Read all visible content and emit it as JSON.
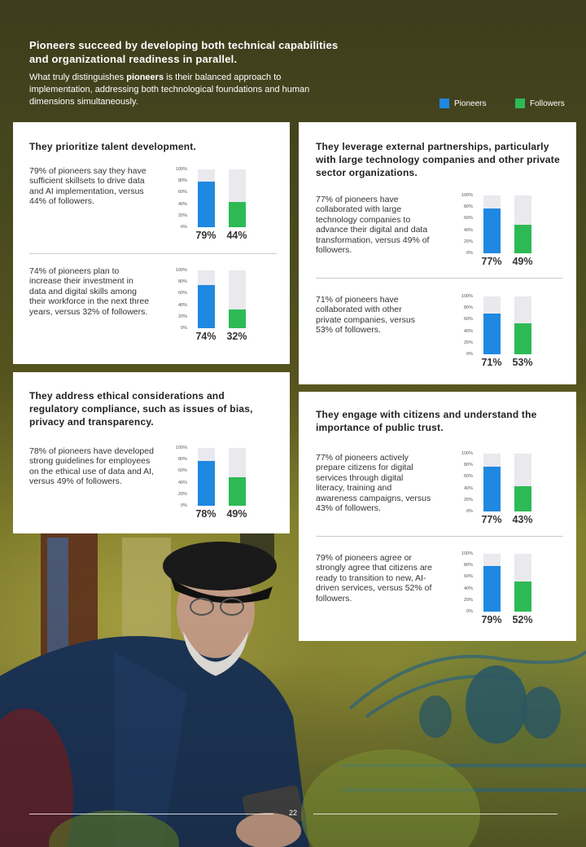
{
  "header": {
    "title": "Pioneers succeed by developing both technical capabilities and organizational readiness in parallel.",
    "intro_before": "What truly distinguishes ",
    "intro_bold": "pioneers",
    "intro_after": " is their balanced approach to implementation, addressing both technological foundations and human dimensions simultaneously."
  },
  "legend": {
    "pioneers": "Pioneers",
    "followers": "Followers",
    "pioneers_color": "#1f88e0",
    "followers_color": "#2dba55"
  },
  "ticks": [
    "100%",
    "80%",
    "60%",
    "40%",
    "20%",
    "0%"
  ],
  "panels": {
    "talent": {
      "title": "They prioritize talent development.",
      "stats": [
        {
          "text": "79% of pioneers say they have sufficient skillsets to drive data and AI implementation, versus 44% of followers.",
          "pioneers": 79,
          "followers": 44,
          "pioneers_label": "79%",
          "followers_label": "44%"
        },
        {
          "text": "74% of pioneers plan to increase their investment in data and digital skills among their workforce in the next three years, versus 32% of followers.",
          "pioneers": 74,
          "followers": 32,
          "pioneers_label": "74%",
          "followers_label": "32%"
        }
      ]
    },
    "partners": {
      "title": "They leverage external partnerships, particularly with large technology companies and other private sector organizations.",
      "stats": [
        {
          "text": "77% of pioneers have collaborated with large technology companies to advance their digital and data transformation, versus 49% of followers.",
          "pioneers": 77,
          "followers": 49,
          "pioneers_label": "77%",
          "followers_label": "49%"
        },
        {
          "text": "71% of pioneers have collaborated with other private companies, versus 53% of followers.",
          "pioneers": 71,
          "followers": 53,
          "pioneers_label": "71%",
          "followers_label": "53%"
        }
      ]
    },
    "ethics": {
      "title": "They address ethical considerations and regulatory compliance, such as issues of bias, privacy and transparency.",
      "stats": [
        {
          "text": "78% of pioneers have developed strong guidelines for employees on the ethical use of data and AI, versus 49% of followers.",
          "pioneers": 78,
          "followers": 49,
          "pioneers_label": "78%",
          "followers_label": "49%"
        }
      ]
    },
    "citizens": {
      "title": "They engage with citizens and understand the importance of public trust.",
      "stats": [
        {
          "text": "77% of pioneers actively prepare citizens for digital services through digital literacy, training and awareness campaigns, versus 43% of followers.",
          "pioneers": 77,
          "followers": 43,
          "pioneers_label": "77%",
          "followers_label": "43%"
        },
        {
          "text": "79% of pioneers agree or strongly agree that citizens are ready to transition to new, AI-driven services, versus 52% of followers.",
          "pioneers": 79,
          "followers": 52,
          "pioneers_label": "79%",
          "followers_label": "52%"
        }
      ]
    }
  },
  "footer": {
    "page_number": "22"
  },
  "photo": {
    "subject": "elderly-man-with-phone-photo"
  }
}
